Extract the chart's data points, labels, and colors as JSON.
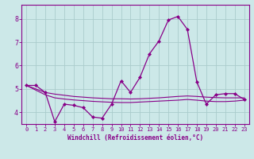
{
  "xlabel": "Windchill (Refroidissement éolien,°C)",
  "background_color": "#cce8e8",
  "grid_color": "#aacccc",
  "line_color": "#880088",
  "xlim": [
    -0.5,
    23.5
  ],
  "ylim": [
    3.5,
    8.6
  ],
  "yticks": [
    4,
    5,
    6,
    7,
    8
  ],
  "xticks": [
    0,
    1,
    2,
    3,
    4,
    5,
    6,
    7,
    8,
    9,
    10,
    11,
    12,
    13,
    14,
    15,
    16,
    17,
    18,
    19,
    20,
    21,
    22,
    23
  ],
  "series": {
    "main": [
      5.15,
      5.15,
      4.85,
      3.6,
      4.35,
      4.3,
      4.2,
      3.8,
      3.75,
      4.35,
      5.35,
      4.85,
      5.5,
      6.5,
      7.05,
      7.95,
      8.1,
      7.55,
      5.3,
      4.35,
      4.75,
      4.8,
      4.8,
      4.55
    ],
    "upper": [
      5.15,
      5.0,
      4.85,
      4.78,
      4.73,
      4.68,
      4.65,
      4.62,
      4.6,
      4.58,
      4.58,
      4.57,
      4.58,
      4.6,
      4.62,
      4.65,
      4.68,
      4.7,
      4.68,
      4.65,
      4.63,
      4.62,
      4.62,
      4.62
    ],
    "lower": [
      5.15,
      4.95,
      4.75,
      4.62,
      4.57,
      4.53,
      4.5,
      4.47,
      4.45,
      4.43,
      4.42,
      4.42,
      4.44,
      4.46,
      4.48,
      4.5,
      4.52,
      4.55,
      4.52,
      4.48,
      4.46,
      4.46,
      4.48,
      4.52
    ]
  }
}
